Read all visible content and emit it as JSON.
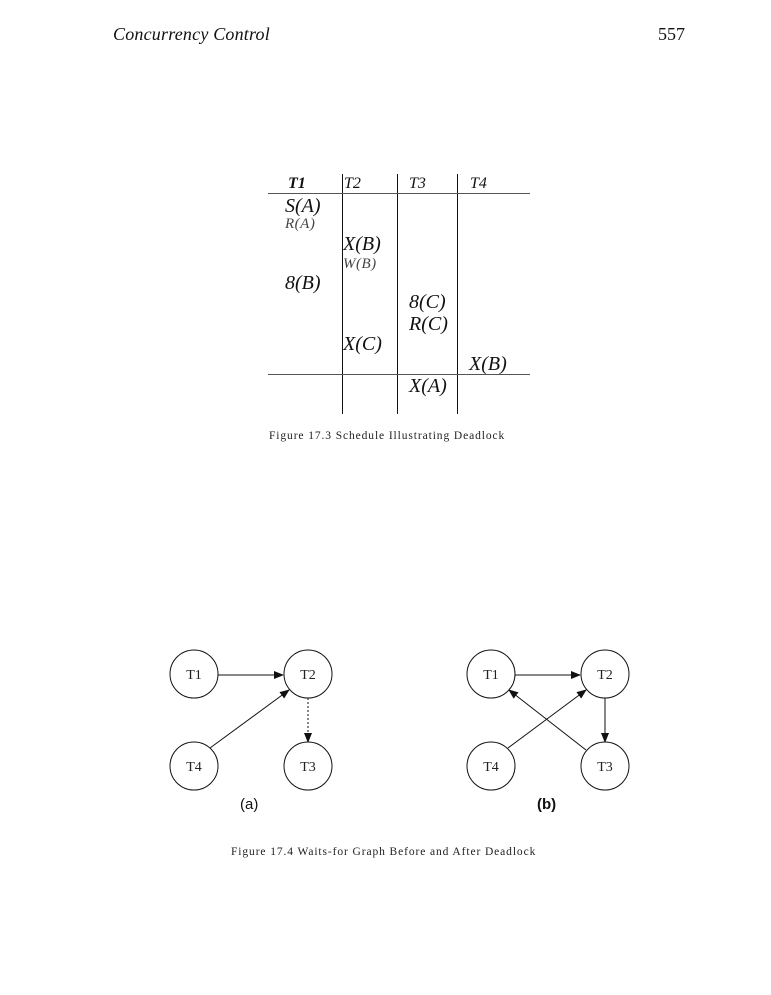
{
  "header": {
    "title": "Concurrency Control",
    "page_number": "557"
  },
  "figure_17_3": {
    "columns": [
      "T1",
      "T2",
      "T3",
      "T4"
    ],
    "ops": {
      "t1_sA": "S(A)",
      "t1_rA": "R(A)",
      "t2_xB": "X(B)",
      "t2_wB": "W(B)",
      "t1_sB": "8(B)",
      "t3_sC": "8(C)",
      "t3_rC": "R(C)",
      "t2_xC": "X(C)",
      "t4_xB": "X(B)",
      "t3_xA": "X(A)"
    },
    "caption": "Figure 17.3   Schedule Illustrating Deadlock"
  },
  "figure_17_4": {
    "nodes": {
      "t1": "T1",
      "t2": "T2",
      "t3": "T3",
      "t4": "T4"
    },
    "label_a": "(a)",
    "label_b": "(b)",
    "caption": "Figure 17.4   Waits-for Graph Before and After Deadlock"
  }
}
